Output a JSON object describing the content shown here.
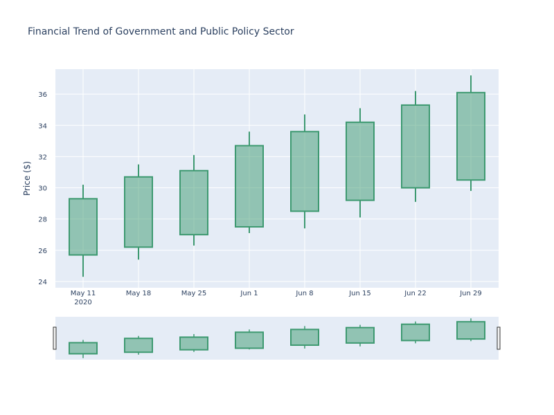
{
  "chart_data": {
    "type": "candlestick",
    "title": "Financial Trend of Government and Public Policy Sector",
    "ylabel": "Price ($)",
    "xlabel": "",
    "ylim": [
      23.6,
      37.6
    ],
    "yticks": [
      24,
      26,
      28,
      30,
      32,
      34,
      36
    ],
    "grid": true,
    "x": [
      "2020-05-11",
      "2020-05-18",
      "2020-05-25",
      "2020-06-01",
      "2020-06-08",
      "2020-06-15",
      "2020-06-22",
      "2020-06-29"
    ],
    "x_tick_labels": [
      {
        "line1": "May 11",
        "line2": "2020"
      },
      {
        "line1": "May 18",
        "line2": ""
      },
      {
        "line1": "May 25",
        "line2": ""
      },
      {
        "line1": "Jun 1",
        "line2": ""
      },
      {
        "line1": "Jun 8",
        "line2": ""
      },
      {
        "line1": "Jun 15",
        "line2": ""
      },
      {
        "line1": "Jun 22",
        "line2": ""
      },
      {
        "line1": "Jun 29",
        "line2": ""
      }
    ],
    "open": [
      25.7,
      26.2,
      27.0,
      27.5,
      28.5,
      29.2,
      30.0,
      30.5
    ],
    "high": [
      30.2,
      31.5,
      32.1,
      33.6,
      34.7,
      35.1,
      36.2,
      37.2
    ],
    "low": [
      24.3,
      25.4,
      26.3,
      27.1,
      27.4,
      28.1,
      29.1,
      29.8
    ],
    "close": [
      29.3,
      30.7,
      31.1,
      32.7,
      33.6,
      34.2,
      35.3,
      36.1
    ],
    "increasing_color": "#3d9970",
    "increasing_fill": "rgba(61,153,112,0.5)",
    "rangeslider": true
  }
}
